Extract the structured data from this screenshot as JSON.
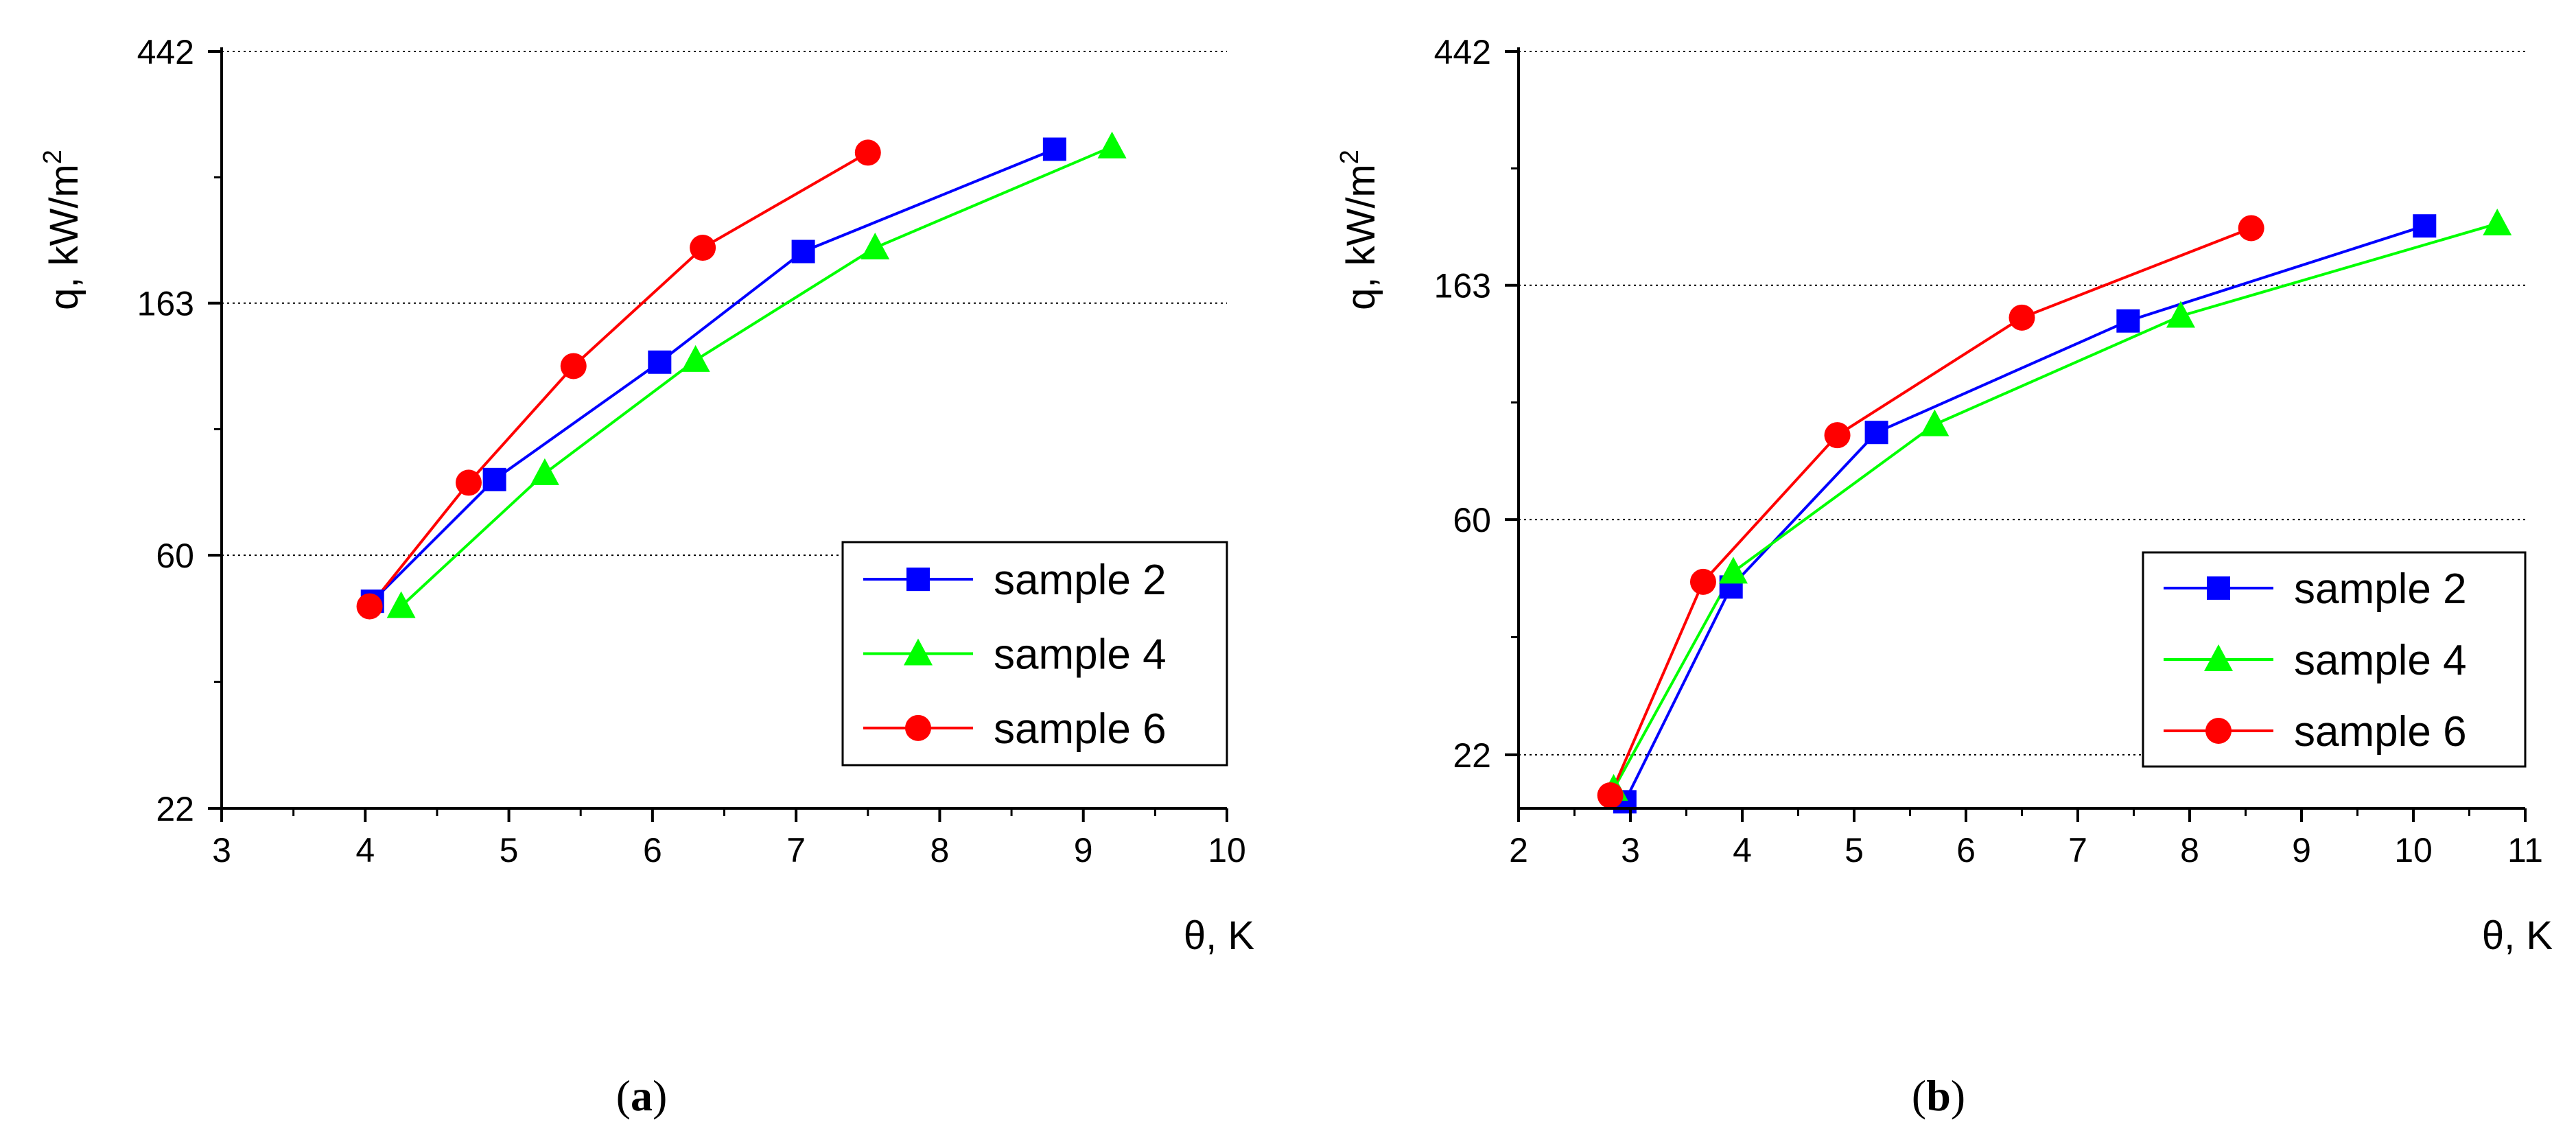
{
  "figure": {
    "captions": [
      {
        "open": "(",
        "letter": "a",
        "close": ")"
      },
      {
        "open": "(",
        "letter": "b",
        "close": ")"
      }
    ]
  },
  "chart_data": [
    {
      "type": "line",
      "panel": "a",
      "title": "",
      "xlabel": "θ, K",
      "ylabel": "q, kW/m",
      "ylabel_superscript": "2",
      "yscale": "log",
      "xlim": [
        3,
        10
      ],
      "ylim": [
        22,
        442
      ],
      "xticks": [
        3,
        4,
        5,
        6,
        7,
        8,
        9,
        10
      ],
      "yticks": [
        22,
        60,
        163,
        442
      ],
      "grid": "horizontal-dotted",
      "legend_position": "bottom-right",
      "series": [
        {
          "name": "sample 2",
          "color": "#0000ff",
          "marker": "square",
          "x": [
            4.05,
            4.9,
            6.05,
            7.05,
            8.8
          ],
          "y": [
            50,
            81,
            129,
            200,
            300
          ]
        },
        {
          "name": "sample 4",
          "color": "#00ff00",
          "marker": "triangle",
          "x": [
            4.25,
            5.25,
            6.3,
            7.55,
            9.2
          ],
          "y": [
            49,
            83,
            130,
            203,
            303
          ]
        },
        {
          "name": "sample 6",
          "color": "#ff0000",
          "marker": "circle",
          "x": [
            4.03,
            4.72,
            5.45,
            6.35,
            7.5
          ],
          "y": [
            49,
            80,
            127,
            203,
            296
          ]
        }
      ]
    },
    {
      "type": "line",
      "panel": "b",
      "title": "",
      "xlabel": "θ, K",
      "ylabel": "q, kW/m",
      "ylabel_superscript": "2",
      "yscale": "log",
      "xlim": [
        2,
        11
      ],
      "ylim": [
        17.5,
        442
      ],
      "xticks": [
        2,
        3,
        4,
        5,
        6,
        7,
        8,
        9,
        10,
        11
      ],
      "yticks": [
        22,
        60,
        163,
        442
      ],
      "grid": "horizontal-dotted",
      "legend_position": "bottom-right",
      "series": [
        {
          "name": "sample 2",
          "color": "#0000ff",
          "marker": "square",
          "x": [
            2.95,
            3.9,
            5.2,
            7.45,
            10.1
          ],
          "y": [
            18,
            45,
            87,
            140,
            210
          ]
        },
        {
          "name": "sample 4",
          "color": "#00ff00",
          "marker": "triangle",
          "x": [
            2.85,
            3.92,
            5.72,
            7.92,
            10.75
          ],
          "y": [
            19,
            48,
            90,
            143,
            212
          ]
        },
        {
          "name": "sample 6",
          "color": "#ff0000",
          "marker": "circle",
          "x": [
            2.82,
            3.65,
            4.85,
            6.5,
            8.55
          ],
          "y": [
            18.5,
            46,
            86,
            142,
            208
          ]
        }
      ]
    }
  ]
}
